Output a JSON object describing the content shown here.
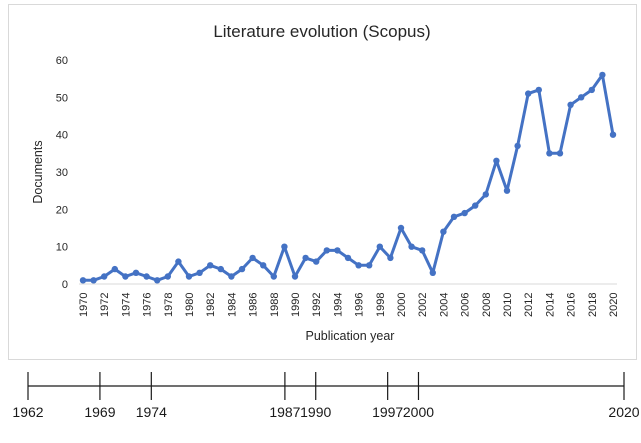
{
  "chart_data": {
    "type": "line",
    "title": "Literature evolution (Scopus)",
    "xlabel": "Publication year",
    "ylabel": "Documents",
    "ylim": [
      0,
      60
    ],
    "yticks": [
      0,
      10,
      20,
      30,
      40,
      50,
      60
    ],
    "xlim": [
      1970,
      2020
    ],
    "xticks": [
      1970,
      1972,
      1974,
      1976,
      1978,
      1980,
      1982,
      1984,
      1986,
      1988,
      1990,
      1992,
      1994,
      1996,
      1998,
      2000,
      2002,
      2004,
      2006,
      2008,
      2010,
      2012,
      2014,
      2016,
      2018,
      2020
    ],
    "grid": false,
    "legend": "none",
    "line_color": "#4472c4",
    "series": [
      {
        "x": [
          1970,
          1971,
          1972,
          1973,
          1974,
          1975,
          1976,
          1977,
          1978,
          1979,
          1980,
          1981,
          1982,
          1983,
          1984,
          1985,
          1986,
          1987,
          1988,
          1989,
          1990,
          1991,
          1992,
          1993,
          1994,
          1995,
          1996,
          1997,
          1998,
          1999,
          2000,
          2001,
          2002,
          2003,
          2004,
          2005,
          2006,
          2007,
          2008,
          2009,
          2010,
          2011,
          2012,
          2013,
          2014,
          2015,
          2016,
          2017,
          2018,
          2019,
          2020
        ],
        "values": [
          1,
          1,
          2,
          4,
          2,
          3,
          2,
          1,
          2,
          6,
          2,
          3,
          5,
          4,
          2,
          4,
          7,
          5,
          2,
          10,
          2,
          7,
          6,
          9,
          9,
          7,
          5,
          5,
          10,
          7,
          15,
          10,
          9,
          3,
          14,
          18,
          19,
          21,
          24,
          33,
          25,
          37,
          51,
          52,
          35,
          35,
          48,
          50,
          52,
          56,
          40
        ]
      }
    ]
  },
  "timeline": {
    "years": [
      "1962",
      "1969",
      "1974",
      "1987",
      "1990",
      "1997",
      "2000",
      "2020"
    ],
    "range": [
      1962,
      2020
    ]
  }
}
